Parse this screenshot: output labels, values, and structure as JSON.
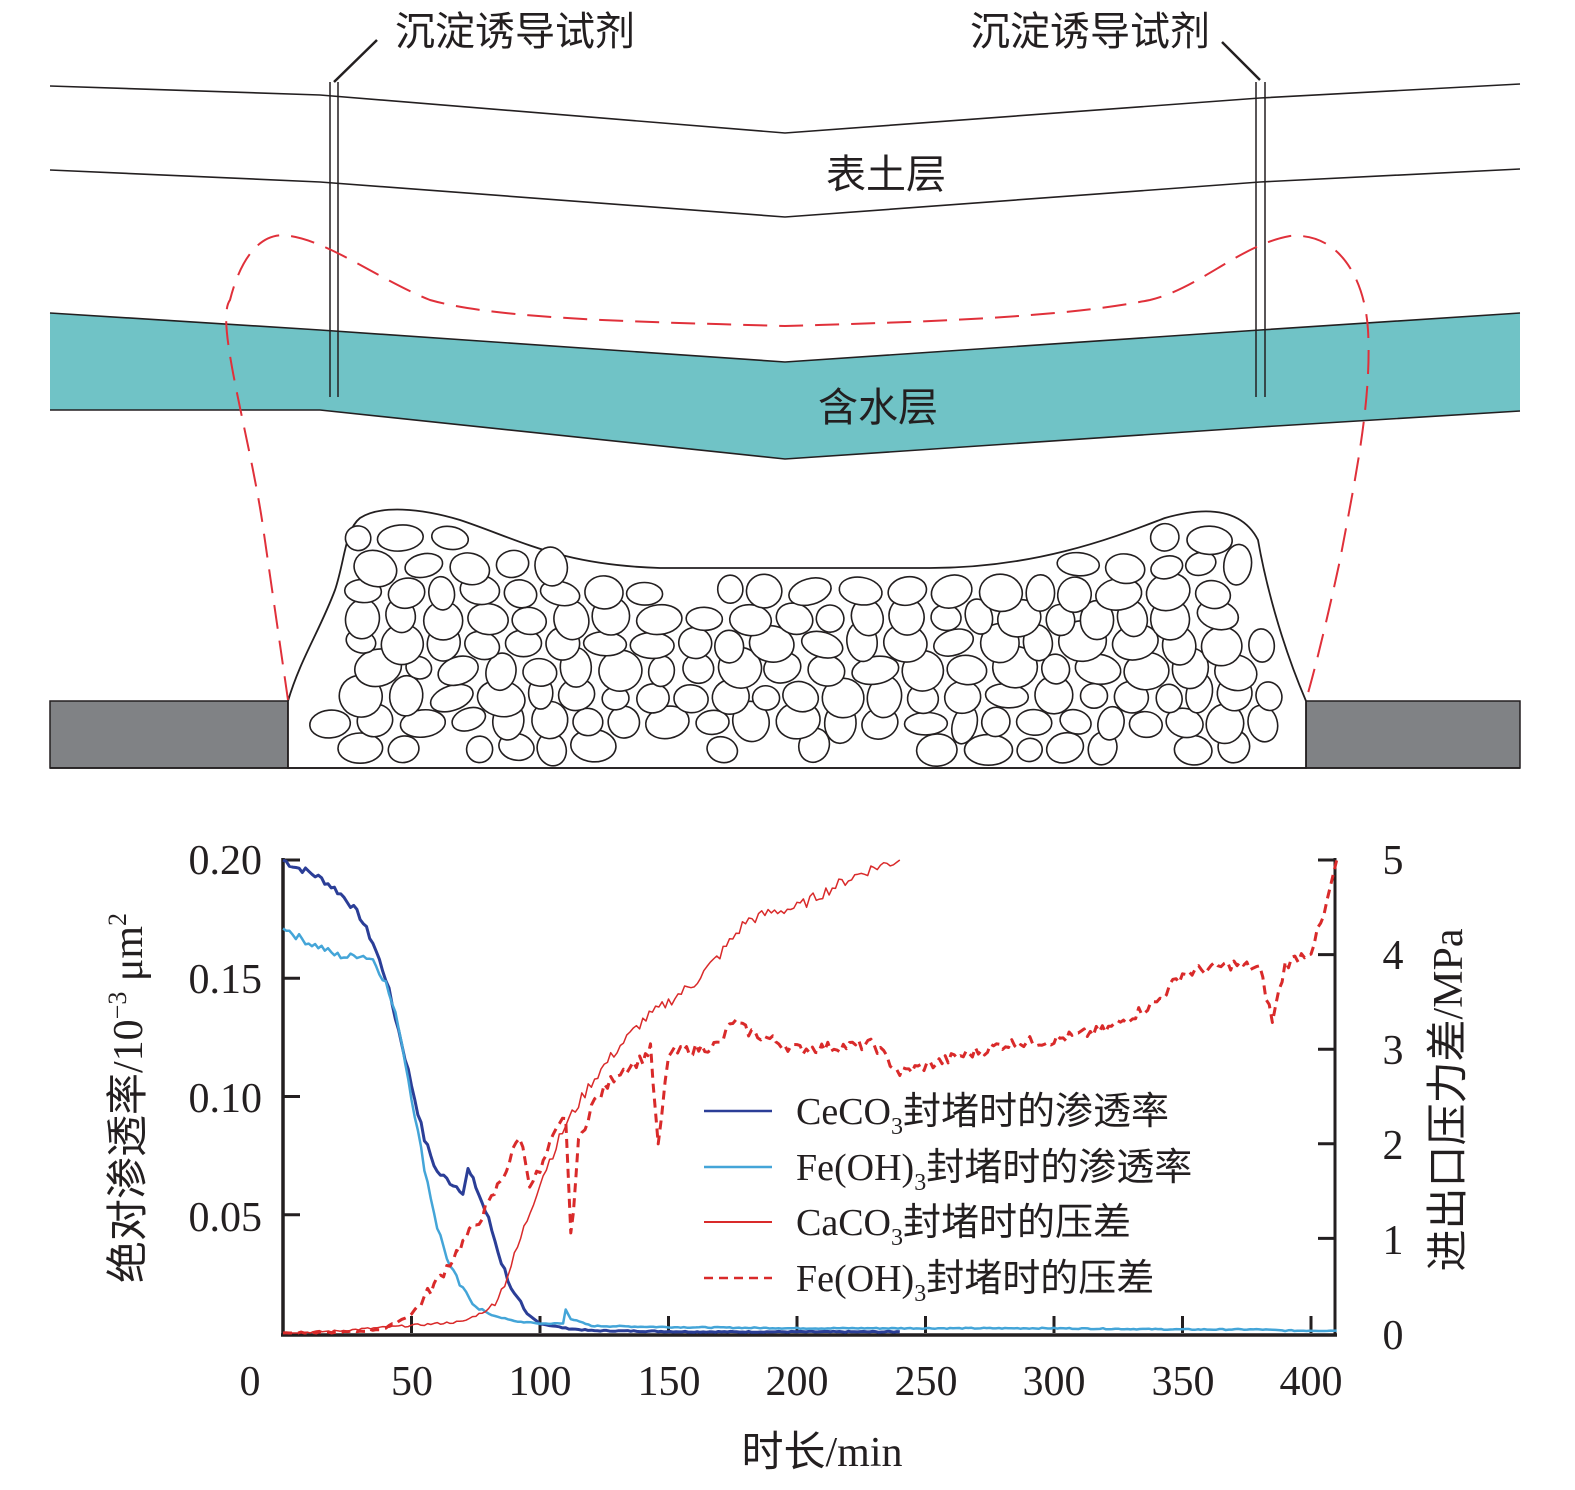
{
  "diagram": {
    "reagent_label_left": "沉淀诱导试剂",
    "reagent_label_right": "沉淀诱导试剂",
    "topsoil_label": "表土层",
    "aquifer_label": "含水层",
    "colors": {
      "aquifer": "#70c3c6",
      "bedrock": "#808285",
      "plume_dash": "#e0303a",
      "line": "#231f20"
    }
  },
  "chart_data": {
    "type": "line",
    "title": "",
    "xlabel": "时长/min",
    "ylabel_left": "绝对渗透率/10",
    "ylabel_left_exp": "−3",
    "ylabel_left_unit": " μm",
    "ylabel_left_unit_exp": "2",
    "ylabel_right": "进出口压力差/MPa",
    "xlim": [
      0,
      410
    ],
    "ylim_left": [
      0,
      0.2
    ],
    "ylim_right": [
      0,
      5
    ],
    "x_ticks": [
      "0",
      "50",
      "100",
      "150",
      "200",
      "250",
      "300",
      "350",
      "400"
    ],
    "y_left_ticks": [
      "0.20",
      "0.15",
      "0.10",
      "0.05"
    ],
    "y_right_ticks": [
      "5",
      "4",
      "3",
      "2",
      "1",
      "0"
    ],
    "grid": false,
    "legend_position": "center-right",
    "series": [
      {
        "name": "CeCO",
        "sub": "3",
        "suffix": "封堵时的渗透率",
        "axis": "left",
        "color": "#2b3e97",
        "dash": "solid",
        "x": [
          0,
          5,
          10,
          15,
          20,
          25,
          30,
          35,
          40,
          45,
          50,
          55,
          60,
          65,
          70,
          72,
          75,
          80,
          85,
          90,
          95,
          100,
          110,
          120,
          140,
          160,
          180,
          200,
          220,
          240
        ],
        "y": [
          0.2,
          0.197,
          0.195,
          0.192,
          0.188,
          0.183,
          0.176,
          0.165,
          0.15,
          0.128,
          0.105,
          0.082,
          0.068,
          0.064,
          0.06,
          0.069,
          0.062,
          0.048,
          0.03,
          0.016,
          0.008,
          0.004,
          0.002,
          0.001,
          0.0008,
          0.0005,
          0.0005,
          0.0005,
          0.0005,
          0.0005
        ]
      },
      {
        "name": "Fe(OH)",
        "sub": "3",
        "suffix": "封堵时的渗透率",
        "axis": "left",
        "color": "#44a5d8",
        "dash": "solid",
        "x": [
          0,
          5,
          10,
          15,
          20,
          25,
          30,
          35,
          40,
          45,
          50,
          55,
          60,
          65,
          70,
          75,
          80,
          90,
          100,
          109,
          110,
          112,
          120,
          150,
          200,
          250,
          300,
          350,
          380,
          390,
          410
        ],
        "y": [
          0.172,
          0.168,
          0.165,
          0.163,
          0.16,
          0.159,
          0.16,
          0.158,
          0.148,
          0.13,
          0.1,
          0.07,
          0.045,
          0.028,
          0.018,
          0.012,
          0.008,
          0.005,
          0.004,
          0.004,
          0.01,
          0.006,
          0.003,
          0.0025,
          0.002,
          0.002,
          0.002,
          0.0015,
          0.0015,
          0.001,
          0.001
        ]
      },
      {
        "name": "CaCO",
        "sub": "3",
        "suffix": "封堵时的压差",
        "axis": "right",
        "color": "#d92a2a",
        "dash": "solid",
        "x": [
          0,
          20,
          40,
          50,
          60,
          70,
          80,
          85,
          90,
          95,
          100,
          110,
          120,
          130,
          140,
          150,
          160,
          170,
          180,
          190,
          200,
          210,
          220,
          230,
          240
        ],
        "y": [
          0,
          0.02,
          0.06,
          0.08,
          0.1,
          0.12,
          0.25,
          0.45,
          0.8,
          1.2,
          1.6,
          2.2,
          2.65,
          3.0,
          3.3,
          3.5,
          3.7,
          4.0,
          4.35,
          4.45,
          4.5,
          4.65,
          4.8,
          4.92,
          5.0
        ]
      },
      {
        "name": "Fe(OH)",
        "sub": "3",
        "suffix": "封堵时的压差",
        "axis": "right",
        "color": "#d92a2a",
        "dash": "dashed",
        "x": [
          0,
          20,
          30,
          40,
          50,
          60,
          70,
          80,
          88,
          92,
          96,
          100,
          105,
          110,
          112,
          115,
          120,
          130,
          140,
          143,
          146,
          150,
          170,
          175,
          180,
          200,
          230,
          240,
          260,
          280,
          300,
          320,
          340,
          350,
          360,
          370,
          380,
          385,
          390,
          400,
          405,
          410
        ],
        "y": [
          0,
          0,
          0.02,
          0.05,
          0.2,
          0.55,
          0.95,
          1.35,
          1.8,
          2.1,
          1.6,
          1.7,
          2.05,
          2.3,
          1.0,
          2.0,
          2.4,
          2.75,
          2.9,
          3.0,
          1.95,
          2.95,
          3.05,
          3.3,
          3.2,
          3.0,
          3.05,
          2.75,
          2.9,
          3.05,
          3.1,
          3.2,
          3.5,
          3.8,
          3.85,
          3.9,
          3.85,
          3.3,
          3.9,
          4.05,
          4.4,
          5.0
        ]
      }
    ]
  }
}
